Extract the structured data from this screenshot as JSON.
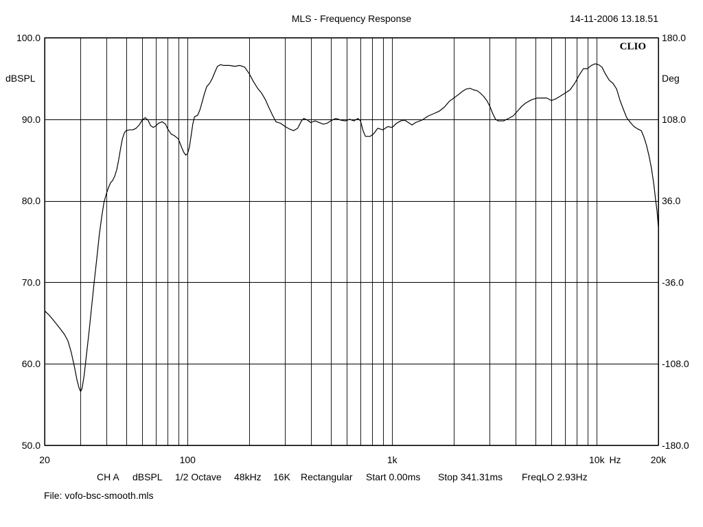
{
  "chart_data": {
    "type": "line",
    "title": "MLS - Frequency Response",
    "timestamp": "14-11-2006 13.18.51",
    "brand": "CLIO",
    "xscale": "log",
    "xlim": [
      20,
      20000
    ],
    "ylim": [
      50,
      100
    ],
    "y2lim": [
      -180,
      180
    ],
    "ylabel": "dBSPL",
    "y2label": "Deg",
    "x_unit_label": "Hz",
    "grid": true,
    "x_tick_labels": [
      {
        "value": 20,
        "label": "20"
      },
      {
        "value": 100,
        "label": "100"
      },
      {
        "value": 1000,
        "label": "1k"
      },
      {
        "value": 10000,
        "label": "10k"
      },
      {
        "value": 20000,
        "label": "20k"
      }
    ],
    "y_tick_labels": [
      {
        "value": 100,
        "label": "100.0"
      },
      {
        "value": 90,
        "label": "90.0"
      },
      {
        "value": 80,
        "label": "80.0"
      },
      {
        "value": 70,
        "label": "70.0"
      },
      {
        "value": 60,
        "label": "60.0"
      },
      {
        "value": 50,
        "label": "50.0"
      }
    ],
    "y2_tick_labels": [
      {
        "value": 180,
        "label": "180.0"
      },
      {
        "value": 108,
        "label": "108.0"
      },
      {
        "value": 36,
        "label": "36.0"
      },
      {
        "value": -36,
        "label": "-36.0"
      },
      {
        "value": -108,
        "label": "-108.0"
      },
      {
        "value": -180,
        "label": "-180.0"
      }
    ],
    "series": [
      {
        "color": "#000000",
        "points": [
          [
            20,
            66.5
          ],
          [
            21,
            66.0
          ],
          [
            22,
            65.4
          ],
          [
            23,
            64.8
          ],
          [
            24,
            64.2
          ],
          [
            25,
            63.6
          ],
          [
            26,
            62.8
          ],
          [
            27,
            61.4
          ],
          [
            28,
            59.6
          ],
          [
            28.8,
            58.0
          ],
          [
            29.5,
            57.0
          ],
          [
            30,
            56.6
          ],
          [
            30.5,
            57.0
          ],
          [
            31.2,
            58.6
          ],
          [
            32,
            61.0
          ],
          [
            33,
            64.0
          ],
          [
            34,
            67.2
          ],
          [
            35,
            70.2
          ],
          [
            36,
            73.0
          ],
          [
            37,
            75.8
          ],
          [
            38,
            78.0
          ],
          [
            39,
            79.8
          ],
          [
            40,
            80.8
          ],
          [
            41,
            81.6
          ],
          [
            42,
            82.2
          ],
          [
            43,
            82.5
          ],
          [
            44,
            83.0
          ],
          [
            45,
            83.8
          ],
          [
            46,
            85.0
          ],
          [
            47,
            86.4
          ],
          [
            48,
            87.6
          ],
          [
            49,
            88.3
          ],
          [
            50,
            88.6
          ],
          [
            52,
            88.7
          ],
          [
            54,
            88.7
          ],
          [
            56,
            88.9
          ],
          [
            58,
            89.3
          ],
          [
            60,
            89.9
          ],
          [
            62,
            90.2
          ],
          [
            64,
            89.9
          ],
          [
            66,
            89.2
          ],
          [
            68,
            89.0
          ],
          [
            70,
            89.2
          ],
          [
            72,
            89.5
          ],
          [
            75,
            89.7
          ],
          [
            78,
            89.4
          ],
          [
            80,
            88.8
          ],
          [
            83,
            88.2
          ],
          [
            86,
            88.0
          ],
          [
            90,
            87.6
          ],
          [
            92,
            87.0
          ],
          [
            94,
            86.4
          ],
          [
            96,
            85.9
          ],
          [
            98,
            85.6
          ],
          [
            100,
            85.8
          ],
          [
            102,
            86.6
          ],
          [
            104,
            88.0
          ],
          [
            106,
            89.4
          ],
          [
            108,
            90.3
          ],
          [
            112,
            90.5
          ],
          [
            115,
            91.2
          ],
          [
            118,
            92.2
          ],
          [
            121,
            93.2
          ],
          [
            124,
            94.0
          ],
          [
            128,
            94.4
          ],
          [
            132,
            95.0
          ],
          [
            136,
            95.8
          ],
          [
            140,
            96.5
          ],
          [
            145,
            96.7
          ],
          [
            150,
            96.6
          ],
          [
            160,
            96.6
          ],
          [
            170,
            96.5
          ],
          [
            180,
            96.6
          ],
          [
            190,
            96.4
          ],
          [
            200,
            95.6
          ],
          [
            210,
            94.6
          ],
          [
            220,
            93.8
          ],
          [
            230,
            93.2
          ],
          [
            240,
            92.4
          ],
          [
            250,
            91.4
          ],
          [
            260,
            90.5
          ],
          [
            270,
            89.7
          ],
          [
            285,
            89.5
          ],
          [
            300,
            89.1
          ],
          [
            315,
            88.8
          ],
          [
            330,
            88.6
          ],
          [
            345,
            88.9
          ],
          [
            360,
            89.8
          ],
          [
            370,
            90.1
          ],
          [
            385,
            89.9
          ],
          [
            400,
            89.6
          ],
          [
            420,
            89.8
          ],
          [
            440,
            89.6
          ],
          [
            460,
            89.4
          ],
          [
            480,
            89.5
          ],
          [
            500,
            89.8
          ],
          [
            530,
            90.1
          ],
          [
            560,
            89.9
          ],
          [
            590,
            89.8
          ],
          [
            620,
            90.0
          ],
          [
            650,
            89.8
          ],
          [
            680,
            90.1
          ],
          [
            700,
            89.8
          ],
          [
            720,
            88.6
          ],
          [
            740,
            87.9
          ],
          [
            780,
            87.9
          ],
          [
            810,
            88.2
          ],
          [
            850,
            88.9
          ],
          [
            900,
            88.7
          ],
          [
            950,
            89.1
          ],
          [
            1000,
            89.0
          ],
          [
            1050,
            89.5
          ],
          [
            1100,
            89.8
          ],
          [
            1150,
            89.9
          ],
          [
            1200,
            89.6
          ],
          [
            1250,
            89.3
          ],
          [
            1300,
            89.6
          ],
          [
            1400,
            89.9
          ],
          [
            1500,
            90.4
          ],
          [
            1600,
            90.7
          ],
          [
            1700,
            91.0
          ],
          [
            1800,
            91.5
          ],
          [
            1900,
            92.2
          ],
          [
            2000,
            92.6
          ],
          [
            2100,
            93.0
          ],
          [
            2200,
            93.4
          ],
          [
            2300,
            93.7
          ],
          [
            2400,
            93.8
          ],
          [
            2500,
            93.6
          ],
          [
            2600,
            93.5
          ],
          [
            2700,
            93.2
          ],
          [
            2800,
            92.8
          ],
          [
            2900,
            92.3
          ],
          [
            3000,
            91.6
          ],
          [
            3100,
            90.7
          ],
          [
            3200,
            90.0
          ],
          [
            3300,
            89.8
          ],
          [
            3500,
            89.8
          ],
          [
            3700,
            90.1
          ],
          [
            3900,
            90.4
          ],
          [
            4100,
            91.0
          ],
          [
            4300,
            91.6
          ],
          [
            4500,
            92.0
          ],
          [
            4800,
            92.4
          ],
          [
            5100,
            92.6
          ],
          [
            5400,
            92.6
          ],
          [
            5700,
            92.6
          ],
          [
            6000,
            92.3
          ],
          [
            6300,
            92.5
          ],
          [
            6600,
            92.8
          ],
          [
            7000,
            93.2
          ],
          [
            7400,
            93.6
          ],
          [
            7800,
            94.4
          ],
          [
            8200,
            95.4
          ],
          [
            8600,
            96.2
          ],
          [
            9000,
            96.2
          ],
          [
            9400,
            96.6
          ],
          [
            9800,
            96.8
          ],
          [
            10200,
            96.7
          ],
          [
            10600,
            96.4
          ],
          [
            11000,
            95.6
          ],
          [
            11500,
            94.8
          ],
          [
            12000,
            94.4
          ],
          [
            12500,
            93.7
          ],
          [
            13000,
            92.3
          ],
          [
            13500,
            91.2
          ],
          [
            14000,
            90.2
          ],
          [
            14600,
            89.6
          ],
          [
            15200,
            89.1
          ],
          [
            15900,
            88.8
          ],
          [
            16500,
            88.6
          ],
          [
            17000,
            87.8
          ],
          [
            17500,
            86.8
          ],
          [
            18000,
            85.5
          ],
          [
            18500,
            84.0
          ],
          [
            19000,
            82.0
          ],
          [
            19400,
            80.0
          ],
          [
            19700,
            78.8
          ],
          [
            20000,
            76.8
          ]
        ]
      }
    ]
  },
  "footer": {
    "channel": "CH A",
    "units": "dBSPL",
    "smoothing": "1/2 Octave",
    "sample_rate": "48kHz",
    "size": "16K",
    "window": "Rectangular",
    "start": "Start 0.00ms",
    "stop": "Stop 341.31ms",
    "freq_lo": "FreqLO 2.93Hz",
    "file": "File: vofo-bsc-smooth.mls"
  }
}
